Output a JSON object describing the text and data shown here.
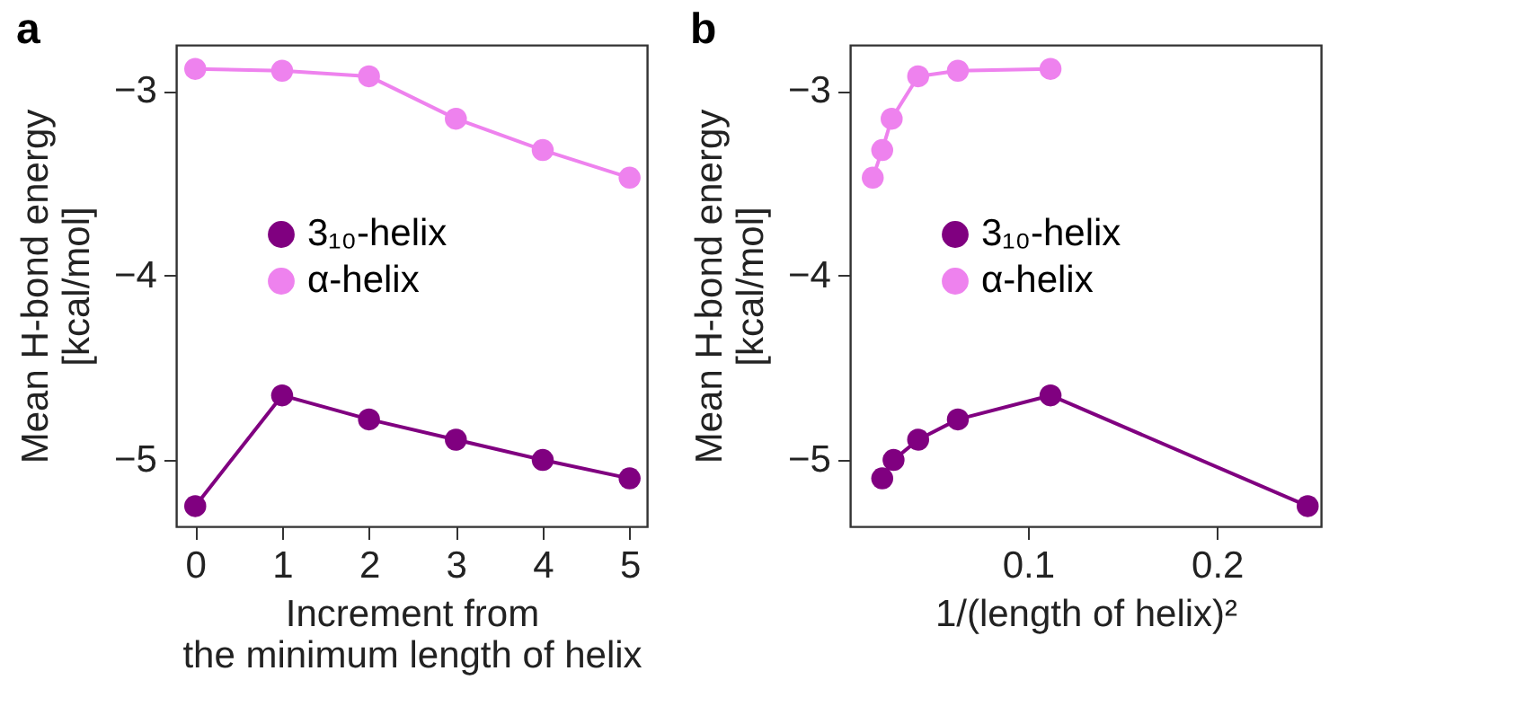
{
  "chart_data": [
    {
      "type": "line",
      "title": "a",
      "xlabel": "Increment from\nthe minimum length of helix",
      "ylabel": "Mean H-bond energy\n[kcal/mol]",
      "x": [
        0,
        1,
        2,
        3,
        4,
        5
      ],
      "xlim": [
        -0.22,
        5.2
      ],
      "xticks": [
        0,
        1,
        2,
        3,
        4,
        5
      ],
      "ylim": [
        -5.36,
        -2.75
      ],
      "yticks": [
        -5,
        -4,
        -3
      ],
      "grid": false,
      "legend": "center",
      "marker": "circle",
      "line_style": "solid",
      "series": [
        {
          "name": "3₁₀-helix",
          "color": "#800080",
          "values": [
            -5.25,
            -4.65,
            -4.78,
            -4.89,
            -5.0,
            -5.1
          ]
        },
        {
          "name": "α-helix",
          "color": "#ee82ee",
          "values": [
            -2.88,
            -2.89,
            -2.92,
            -3.15,
            -3.32,
            -3.47
          ]
        }
      ]
    },
    {
      "type": "line",
      "title": "b",
      "xlabel": "1/(length of helix)²",
      "ylabel": "Mean H-bond energy\n[kcal/mol]",
      "xlim": [
        0.006,
        0.255
      ],
      "xticks": [
        0.1,
        0.2
      ],
      "ylim": [
        -5.36,
        -2.75
      ],
      "yticks": [
        -5,
        -4,
        -3
      ],
      "grid": false,
      "legend": "center",
      "marker": "circle",
      "line_style": "solid",
      "series": [
        {
          "name": "3₁₀-helix",
          "color": "#800080",
          "x": [
            0.248,
            0.112,
            0.063,
            0.042,
            0.029,
            0.023
          ],
          "values": [
            -5.25,
            -4.65,
            -4.78,
            -4.89,
            -5.0,
            -5.1
          ]
        },
        {
          "name": "α-helix",
          "color": "#ee82ee",
          "x": [
            0.112,
            0.063,
            0.042,
            0.028,
            0.023,
            0.018
          ],
          "values": [
            -2.88,
            -2.89,
            -2.92,
            -3.15,
            -3.32,
            -3.47
          ]
        }
      ]
    }
  ]
}
